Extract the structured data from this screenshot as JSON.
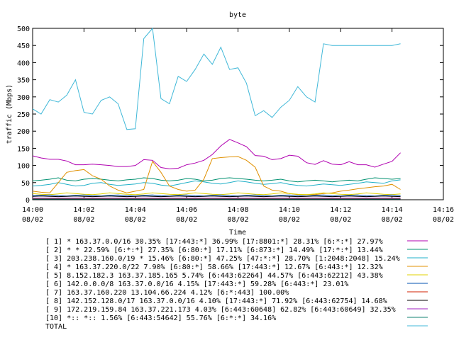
{
  "chart_data": {
    "type": "line",
    "title": "byte",
    "xlabel": "Time",
    "ylabel": "traffic (Mbps)",
    "ylim": [
      0,
      500
    ],
    "xlim": [
      0,
      16
    ],
    "yticks": [
      0,
      50,
      100,
      150,
      200,
      250,
      300,
      350,
      400,
      450,
      500
    ],
    "xticks": [
      {
        "v": 0,
        "time": "14:00",
        "date": "08/02"
      },
      {
        "v": 2,
        "time": "14:02",
        "date": "08/02"
      },
      {
        "v": 4,
        "time": "14:04",
        "date": "08/02"
      },
      {
        "v": 6,
        "time": "14:06",
        "date": "08/02"
      },
      {
        "v": 8,
        "time": "14:08",
        "date": "08/02"
      },
      {
        "v": 10,
        "time": "14:10",
        "date": "08/02"
      },
      {
        "v": 12,
        "time": "14:12",
        "date": "08/02"
      },
      {
        "v": 14,
        "time": "14:14",
        "date": "08/02"
      },
      {
        "v": 16,
        "time": "14:16",
        "date": "08/02"
      }
    ],
    "grid": false,
    "legend": "bottom",
    "x": [
      0,
      0.33,
      0.67,
      1,
      1.33,
      1.67,
      2,
      2.33,
      2.67,
      3,
      3.33,
      3.67,
      4,
      4.33,
      4.67,
      5,
      5.33,
      5.67,
      6,
      6.33,
      6.67,
      7,
      7.33,
      7.67,
      8,
      8.33,
      8.67,
      9,
      9.33,
      9.67,
      10,
      10.33,
      10.67,
      11,
      11.33,
      11.67,
      12,
      12.33,
      12.67,
      13,
      13.33,
      13.67,
      14,
      14.33
    ],
    "series": [
      {
        "name": "[ 1] * 163.37.0.0/16 30.35%  [17:443:*] 36.99% [17:8801:*] 28.31% [6:*:*] 27.97%",
        "color": "#b000b0",
        "values": [
          128,
          122,
          118,
          118,
          113,
          102,
          102,
          104,
          102,
          100,
          97,
          97,
          100,
          117,
          115,
          94,
          90,
          92,
          102,
          107,
          115,
          132,
          157,
          176,
          166,
          155,
          129,
          127,
          117,
          120,
          130,
          127,
          108,
          103,
          114,
          104,
          102,
          111,
          102,
          102,
          95,
          104,
          112,
          137
        ]
      },
      {
        "name": "[ 2] * * 22.59%  [6:*:*] 27.35% [6:80:*] 17.11% [6:873:*] 14.49% [17:*:*] 13.44%",
        "color": "#009070",
        "values": [
          55,
          57,
          60,
          64,
          57,
          55,
          60,
          62,
          60,
          57,
          55,
          58,
          60,
          64,
          62,
          57,
          55,
          57,
          62,
          60,
          55,
          57,
          62,
          64,
          62,
          60,
          57,
          55,
          57,
          60,
          55,
          52,
          55,
          57,
          55,
          52,
          55,
          57,
          55,
          60,
          64,
          62,
          60,
          62
        ]
      },
      {
        "name": "[ 3] 203.238.160.0/19 * 15.46%  [6:80:*] 47.25% [47:*:*] 28.70% [1:2048:2048] 15.24%",
        "color": "#20b0c8",
        "values": [
          40,
          42,
          45,
          50,
          45,
          40,
          42,
          48,
          50,
          45,
          42,
          44,
          46,
          50,
          48,
          43,
          40,
          45,
          50,
          55,
          52,
          48,
          46,
          50,
          55,
          52,
          48,
          45,
          47,
          50,
          45,
          42,
          40,
          43,
          46,
          44,
          42,
          45,
          48,
          52,
          50,
          48,
          55,
          58
        ]
      },
      {
        "name": "[ 4] * 163.37.220.0/22 7.90%  [6:80:*] 58.66% [17:443:*] 12.67% [6:443:*] 12.32%",
        "color": "#e09000",
        "values": [
          25,
          22,
          20,
          50,
          80,
          85,
          88,
          70,
          60,
          40,
          28,
          20,
          25,
          30,
          112,
          80,
          40,
          30,
          25,
          28,
          60,
          120,
          123,
          125,
          126,
          115,
          95,
          40,
          28,
          25,
          18,
          15,
          15,
          15,
          18,
          20,
          25,
          28,
          32,
          35,
          38,
          40,
          45,
          30
        ]
      },
      {
        "name": "[ 5] 8.152.182.3 163.37.185.165 5.74%  [6:443:62264] 44.57% [6:443:62212] 43.38%",
        "color": "#e0d000",
        "values": [
          18,
          16,
          15,
          17,
          20,
          18,
          16,
          15,
          17,
          20,
          18,
          16,
          15,
          17,
          20,
          18,
          16,
          15,
          17,
          20,
          18,
          16,
          15,
          17,
          20,
          18,
          16,
          15,
          17,
          20,
          18,
          16,
          15,
          17,
          20,
          18,
          16,
          15,
          17,
          20,
          18,
          16,
          15,
          17
        ]
      },
      {
        "name": "[ 6] 142.0.0.0/8 163.37.0.0/16 4.15%  [17:443:*] 59.28% [6:443:*] 23.01%",
        "color": "#0050b0",
        "values": [
          12,
          13,
          14,
          12,
          11,
          13,
          14,
          12,
          11,
          13,
          14,
          12,
          11,
          13,
          14,
          12,
          11,
          13,
          14,
          12,
          11,
          13,
          14,
          12,
          11,
          13,
          14,
          12,
          11,
          13,
          14,
          12,
          11,
          13,
          14,
          12,
          11,
          13,
          14,
          12,
          11,
          13,
          14,
          12
        ]
      },
      {
        "name": "[ 7] 163.37.160.220 13.104.66.224 4.12%  [6:*:443] 100.00%",
        "color": "#d02000",
        "values": [
          3,
          3,
          3,
          3,
          3,
          3,
          3,
          3,
          3,
          3,
          3,
          3,
          3,
          3,
          3,
          3,
          3,
          3,
          3,
          3,
          3,
          3,
          3,
          3,
          3,
          3,
          3,
          3,
          3,
          3,
          3,
          3,
          3,
          3,
          3,
          3,
          3,
          3,
          3,
          3,
          3,
          3,
          3,
          3
        ]
      },
      {
        "name": "[ 8] 142.152.128.0/17 163.37.0.0/16 4.10%  [17:443:*] 71.92% [6:443:62754] 14.68%",
        "color": "#000000",
        "values": [
          10,
          11,
          10,
          9,
          10,
          11,
          10,
          9,
          10,
          11,
          10,
          9,
          10,
          11,
          10,
          9,
          10,
          11,
          10,
          9,
          10,
          11,
          10,
          9,
          10,
          11,
          10,
          9,
          10,
          11,
          10,
          9,
          10,
          11,
          10,
          9,
          10,
          11,
          10,
          9,
          10,
          11,
          10,
          9
        ]
      },
      {
        "name": "[ 9] 172.219.159.84 163.37.221.173 4.03%  [6:443:60648] 62.82% [6:443:60649] 32.35%",
        "color": "#a020c0",
        "values": [
          5,
          5,
          5,
          5,
          5,
          5,
          5,
          5,
          5,
          5,
          5,
          5,
          5,
          5,
          5,
          5,
          5,
          5,
          5,
          5,
          5,
          5,
          5,
          5,
          5,
          5,
          5,
          5,
          5,
          5,
          5,
          5,
          5,
          5,
          5,
          5,
          5,
          5,
          5,
          5,
          5,
          5,
          5,
          5
        ]
      },
      {
        "name": "[10] *:: *:: 1.56%  [6:443:54642] 55.76% [6:*:*] 34.16%",
        "color": "#108070",
        "values": [
          2,
          2,
          2,
          2,
          2,
          2,
          2,
          2,
          2,
          2,
          2,
          2,
          2,
          2,
          2,
          2,
          2,
          2,
          2,
          2,
          2,
          2,
          2,
          2,
          2,
          2,
          2,
          2,
          2,
          2,
          2,
          2,
          2,
          2,
          2,
          2,
          2,
          2,
          2,
          2,
          2,
          2,
          2,
          2
        ]
      },
      {
        "name": "TOTAL",
        "color": "#40b8d8",
        "values": [
          265,
          250,
          292,
          285,
          305,
          350,
          255,
          250,
          290,
          300,
          280,
          205,
          207,
          470,
          500,
          295,
          280,
          360,
          345,
          380,
          425,
          395,
          445,
          380,
          385,
          340,
          245,
          260,
          240,
          270,
          290,
          330,
          300,
          285,
          455,
          450,
          450,
          450,
          450,
          450,
          450,
          450,
          450,
          455
        ]
      }
    ]
  }
}
